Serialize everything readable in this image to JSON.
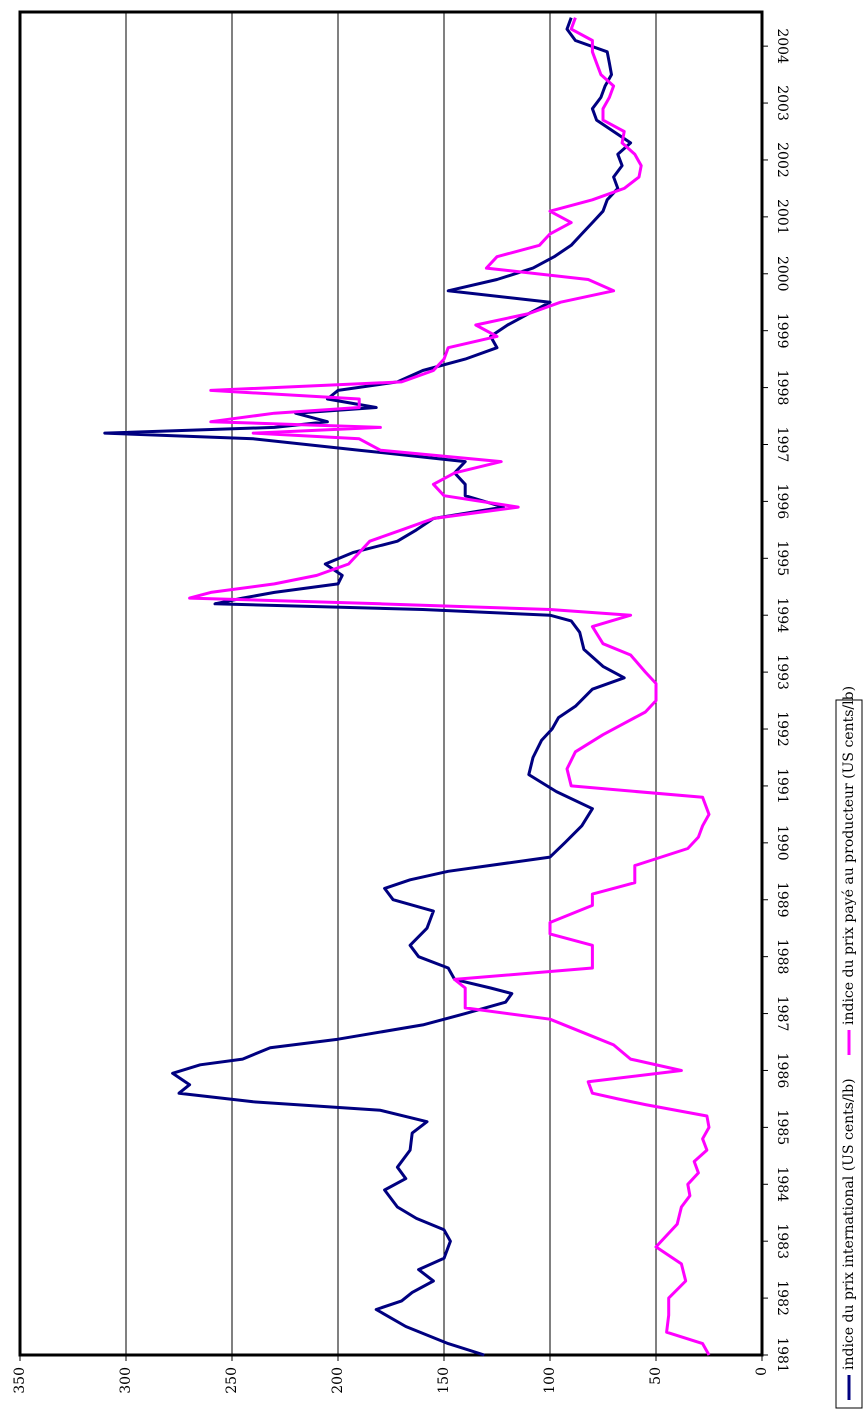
{
  "chart_data": {
    "type": "line",
    "orientation": "rotated-90-clockwise",
    "title": "",
    "xlabel": "",
    "ylabel": "",
    "ylim": [
      0,
      350
    ],
    "y_ticks": [
      "0",
      "50",
      "100",
      "150",
      "200",
      "250",
      "300",
      "350"
    ],
    "xlim": [
      1981.0,
      2004.6
    ],
    "x_ticks": [
      "1981",
      "1982",
      "1983",
      "1984",
      "1985",
      "1986",
      "1987",
      "1988",
      "1989",
      "1990",
      "1991",
      "1992",
      "1993",
      "1994",
      "1995",
      "1996",
      "1997",
      "1998",
      "1999",
      "2000",
      "2001",
      "2002",
      "2003",
      "2004"
    ],
    "grid": "horizontal value gridlines",
    "legend_position": "right (bottom of page after rotation)",
    "series": [
      {
        "name": "indice du prix international (US cents/lb)",
        "color": "#000080",
        "x": [
          1981.0,
          1981.2,
          1981.5,
          1981.8,
          1981.95,
          1982.1,
          1982.3,
          1982.5,
          1982.7,
          1983.0,
          1983.2,
          1983.4,
          1983.6,
          1983.9,
          1984.1,
          1984.3,
          1984.6,
          1984.9,
          1985.1,
          1985.3,
          1985.45,
          1985.6,
          1985.75,
          1985.95,
          1986.1,
          1986.2,
          1986.4,
          1986.55,
          1986.8,
          1987.0,
          1987.2,
          1987.35,
          1987.45,
          1987.6,
          1987.8,
          1988.0,
          1988.2,
          1988.5,
          1988.8,
          1989.0,
          1989.2,
          1989.35,
          1989.5,
          1989.75,
          1990.0,
          1990.3,
          1990.6,
          1990.9,
          1991.2,
          1991.5,
          1991.8,
          1992.0,
          1992.2,
          1992.4,
          1992.7,
          1992.9,
          1993.1,
          1993.4,
          1993.7,
          1993.9,
          1994.0,
          1994.1,
          1994.2,
          1994.3,
          1994.4,
          1994.55,
          1994.7,
          1994.9,
          1995.1,
          1995.3,
          1995.5,
          1995.7,
          1995.9,
          1996.1,
          1996.3,
          1996.5,
          1996.7,
          1996.9,
          1997.1,
          1997.2,
          1997.3,
          1997.4,
          1997.55,
          1997.65,
          1997.8,
          1997.95,
          1998.1,
          1998.3,
          1998.5,
          1998.7,
          1998.9,
          1999.1,
          1999.3,
          1999.5,
          1999.7,
          1999.9,
          2000.1,
          2000.3,
          2000.5,
          2000.7,
          2000.9,
          2001.1,
          2001.3,
          2001.5,
          2001.7,
          2001.9,
          2002.1,
          2002.3,
          2002.5,
          2002.7,
          2002.9,
          2003.1,
          2003.3,
          2003.5,
          2003.7,
          2003.9,
          2004.1,
          2004.3,
          2004.5
        ],
        "values": [
          131,
          148,
          168,
          182,
          170,
          165,
          155,
          162,
          150,
          147,
          150,
          163,
          172,
          178,
          168,
          172,
          166,
          165,
          158,
          180,
          240,
          275,
          270,
          278,
          265,
          245,
          232,
          200,
          160,
          140,
          121,
          118,
          128,
          145,
          148,
          162,
          166,
          158,
          155,
          174,
          178,
          166,
          148,
          100,
          93,
          85,
          80,
          97,
          110,
          108,
          104,
          99,
          96,
          88,
          80,
          65,
          75,
          84,
          86,
          90,
          100,
          160,
          258,
          245,
          230,
          200,
          198,
          206,
          193,
          172,
          163,
          155,
          122,
          140,
          140,
          145,
          140,
          190,
          240,
          310,
          230,
          205,
          220,
          182,
          205,
          200,
          172,
          160,
          140,
          125,
          128,
          120,
          110,
          100,
          148,
          125,
          108,
          98,
          90,
          85,
          80,
          75,
          73,
          68,
          70,
          66,
          68,
          62,
          70,
          78,
          80,
          76,
          74,
          71,
          72,
          73,
          88,
          92,
          90
        ]
      },
      {
        "name": "indice du prix payé au producteur (US cents/lb)",
        "color": "#FF00FF",
        "x": [
          1981.0,
          1981.2,
          1981.4,
          1981.7,
          1982.0,
          1982.3,
          1982.6,
          1982.9,
          1983.1,
          1983.3,
          1983.6,
          1983.8,
          1984.0,
          1984.2,
          1984.4,
          1984.6,
          1984.8,
          1985.0,
          1985.2,
          1985.4,
          1985.5,
          1985.6,
          1985.8,
          1986.0,
          1986.2,
          1986.45,
          1986.6,
          1986.9,
          1987.1,
          1987.3,
          1987.45,
          1987.6,
          1987.8,
          1988.0,
          1988.2,
          1988.4,
          1988.6,
          1988.9,
          1989.1,
          1989.3,
          1989.6,
          1989.9,
          1990.1,
          1990.3,
          1990.5,
          1990.8,
          1991.0,
          1991.3,
          1991.6,
          1991.9,
          1992.1,
          1992.3,
          1992.5,
          1992.8,
          1993.0,
          1993.3,
          1993.5,
          1993.8,
          1994.0,
          1994.1,
          1994.2,
          1994.3,
          1994.4,
          1994.55,
          1994.7,
          1994.9,
          1995.1,
          1995.3,
          1995.5,
          1995.7,
          1995.9,
          1996.1,
          1996.3,
          1996.5,
          1996.7,
          1996.9,
          1997.1,
          1997.2,
          1997.3,
          1997.4,
          1997.55,
          1997.65,
          1997.8,
          1997.95,
          1998.1,
          1998.3,
          1998.5,
          1998.7,
          1998.9,
          1999.1,
          1999.3,
          1999.5,
          1999.7,
          1999.9,
          2000.1,
          2000.3,
          2000.5,
          2000.7,
          2000.9,
          2001.1,
          2001.3,
          2001.5,
          2001.7,
          2001.9,
          2002.1,
          2002.3,
          2002.5,
          2002.7,
          2002.9,
          2003.1,
          2003.3,
          2003.5,
          2003.7,
          2003.9,
          2004.1,
          2004.3,
          2004.5
        ],
        "values": [
          25,
          28,
          45,
          44,
          44,
          36,
          38,
          50,
          45,
          40,
          38,
          34,
          35,
          30,
          32,
          26,
          28,
          25,
          26,
          55,
          68,
          80,
          82,
          38,
          62,
          70,
          80,
          100,
          140,
          140,
          140,
          145,
          80,
          80,
          80,
          100,
          100,
          80,
          80,
          60,
          60,
          35,
          30,
          28,
          25,
          28,
          90,
          92,
          88,
          75,
          65,
          55,
          50,
          50,
          55,
          62,
          75,
          80,
          62,
          100,
          180,
          270,
          260,
          230,
          210,
          195,
          190,
          185,
          170,
          155,
          115,
          150,
          155,
          145,
          123,
          180,
          190,
          240,
          180,
          260,
          230,
          190,
          190,
          260,
          170,
          155,
          150,
          148,
          125,
          135,
          110,
          95,
          70,
          82,
          130,
          125,
          105,
          100,
          90,
          100,
          80,
          65,
          58,
          57,
          60,
          66,
          65,
          75,
          75,
          72,
          70,
          76,
          78,
          80,
          80,
          90,
          88
        ]
      }
    ]
  }
}
